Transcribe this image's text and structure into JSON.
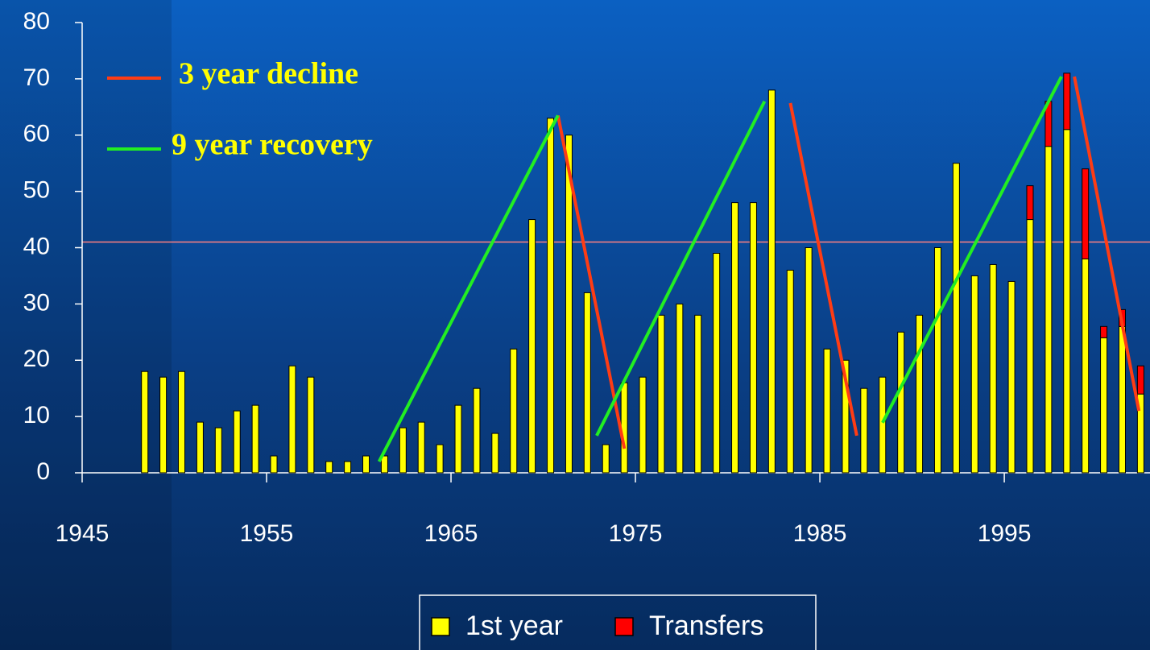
{
  "chart_data": {
    "type": "bar",
    "stacked": true,
    "x": [
      1948,
      1949,
      1950,
      1951,
      1952,
      1953,
      1954,
      1955,
      1956,
      1957,
      1958,
      1959,
      1960,
      1961,
      1962,
      1963,
      1964,
      1965,
      1966,
      1967,
      1968,
      1969,
      1970,
      1971,
      1972,
      1973,
      1974,
      1975,
      1976,
      1977,
      1978,
      1979,
      1980,
      1981,
      1982,
      1983,
      1984,
      1985,
      1986,
      1987,
      1988,
      1989,
      1990,
      1991,
      1992,
      1993,
      1994,
      1995,
      1996,
      1997,
      1998,
      1999,
      2000,
      2001,
      2002
    ],
    "series": [
      {
        "name": "1st year",
        "color": "#ffff00",
        "values": [
          18,
          17,
          18,
          9,
          8,
          11,
          12,
          3,
          19,
          17,
          2,
          2,
          3,
          3,
          8,
          9,
          5,
          12,
          15,
          7,
          22,
          45,
          63,
          60,
          32,
          5,
          16,
          17,
          28,
          30,
          28,
          39,
          48,
          48,
          68,
          36,
          40,
          22,
          20,
          15,
          17,
          25,
          28,
          40,
          55,
          35,
          37,
          34,
          45,
          58,
          61,
          38,
          24,
          26,
          14
        ]
      },
      {
        "name": "Transfers",
        "color": "#ff0000",
        "values": [
          0,
          0,
          0,
          0,
          0,
          0,
          0,
          0,
          0,
          0,
          0,
          0,
          0,
          0,
          0,
          0,
          0,
          0,
          0,
          0,
          0,
          0,
          0,
          0,
          0,
          0,
          0,
          0,
          0,
          0,
          0,
          0,
          0,
          0,
          0,
          0,
          0,
          0,
          0,
          0,
          0,
          0,
          0,
          0,
          0,
          0,
          0,
          0,
          6,
          8,
          10,
          16,
          2,
          3,
          5
        ]
      }
    ],
    "reference_line": {
      "value": 41,
      "color": "#ff8080"
    },
    "lines": [
      {
        "name": "3 year decline",
        "color": "#ff3c14",
        "x": [
          1970.8,
          1974.4,
          null,
          1983.4,
          1987.0,
          null,
          1998.8,
          2002.3
        ],
        "y": [
          63.5,
          4.3,
          null,
          65.7,
          6.6,
          null,
          70.4,
          11
        ]
      },
      {
        "name": "9 year recovery",
        "color": "#22ee22",
        "x": [
          1961.1,
          1970.8,
          null,
          1972.9,
          1982.0,
          null,
          1988.4,
          1998.1
        ],
        "y": [
          2,
          63.5,
          null,
          6.6,
          66,
          null,
          8.9,
          70.4
        ]
      }
    ],
    "xlim": [
      1945,
      2002.9
    ],
    "xticks": [
      1945,
      1955,
      1965,
      1975,
      1985,
      1995
    ],
    "ylim": [
      0,
      80
    ],
    "yticks": [
      0,
      10,
      20,
      30,
      40,
      50,
      60,
      70,
      80
    ],
    "legend": "bottom"
  }
}
